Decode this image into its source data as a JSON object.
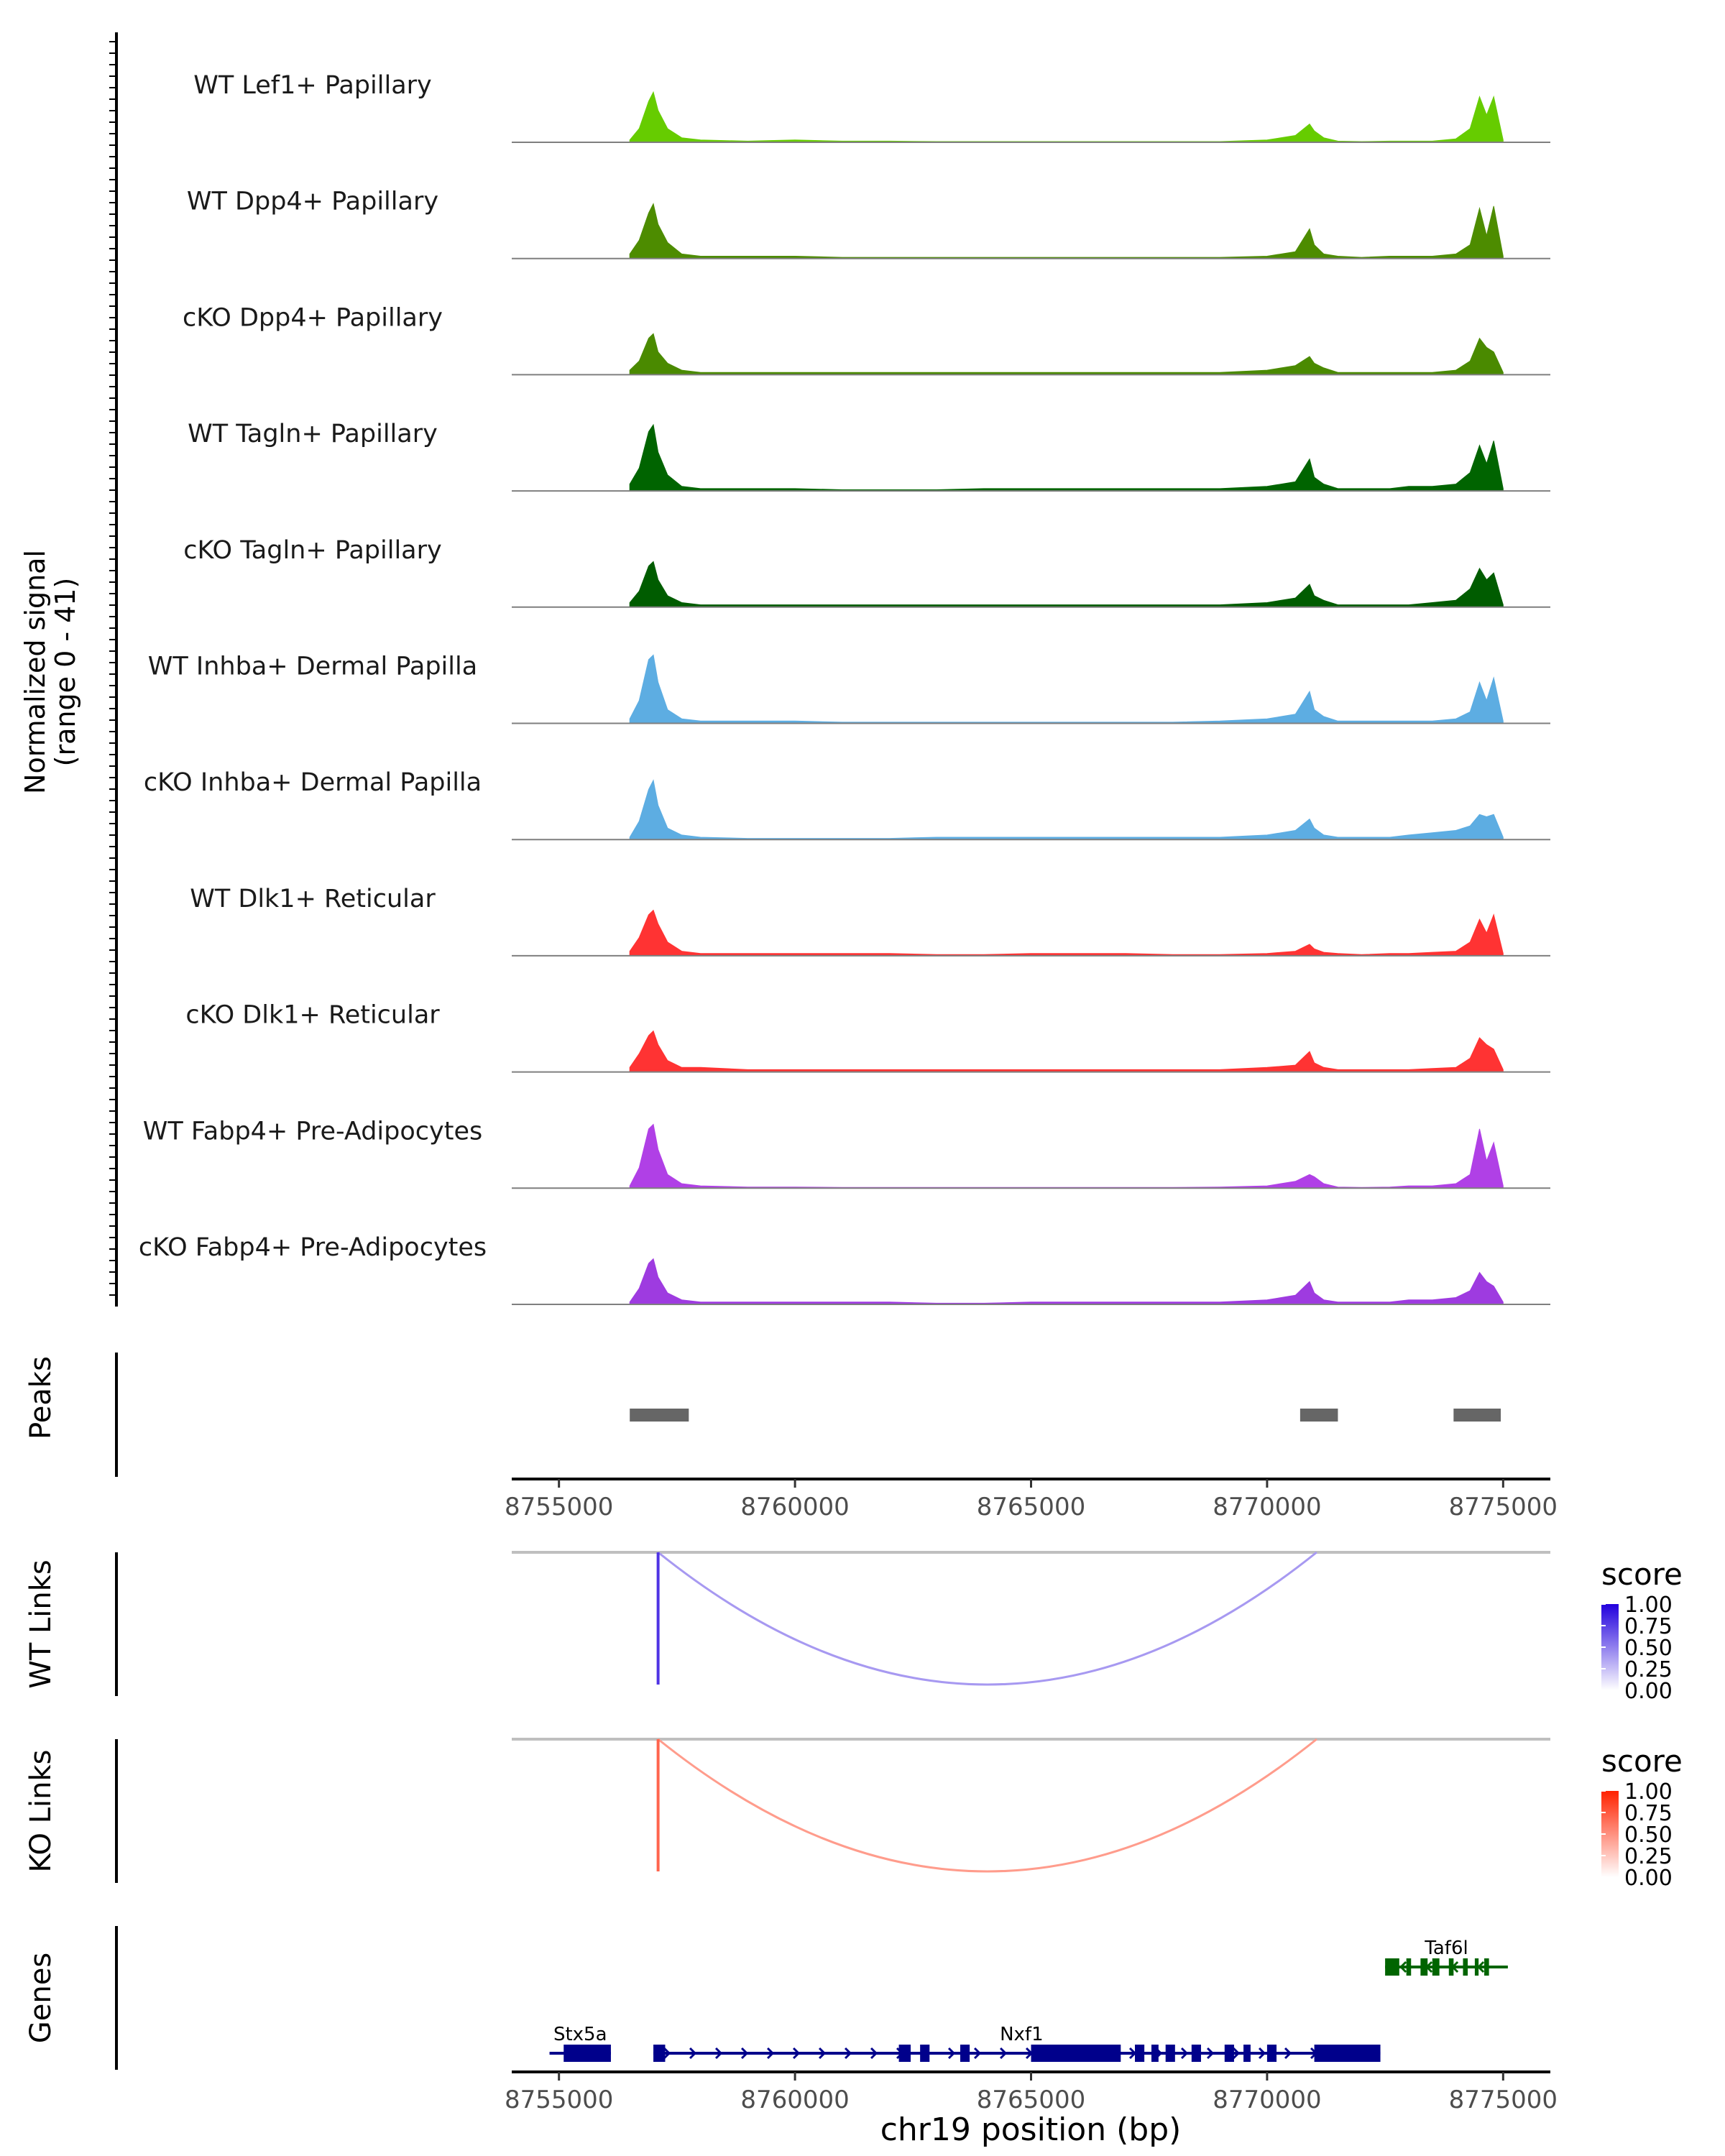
{
  "chart_data": {
    "type": "area",
    "title": "",
    "region": {
      "chrom": "chr19",
      "start": 8754000,
      "end": 8776000
    },
    "xlabel": "chr19 position (bp)",
    "x_ticks": [
      8755000,
      8760000,
      8765000,
      8770000,
      8775000
    ],
    "x_tick_labels": [
      "8755000",
      "8760000",
      "8765000",
      "8770000",
      "8775000"
    ],
    "coverage": {
      "ylabel_line1": "Normalized signal",
      "ylabel_line2": "(range 0 - 41)",
      "ylim": [
        0,
        41
      ],
      "x": [
        8756500,
        8756700,
        8756900,
        8757000,
        8757100,
        8757300,
        8757600,
        8758000,
        8759000,
        8760000,
        8761000,
        8762000,
        8763000,
        8764000,
        8765000,
        8766000,
        8767000,
        8768000,
        8769000,
        8770000,
        8770600,
        8770900,
        8771000,
        8771200,
        8771500,
        8772000,
        8772600,
        8773000,
        8773500,
        8774000,
        8774300,
        8774500,
        8774650,
        8774800,
        8775000
      ],
      "tracks": [
        {
          "label": "WT Lef1+ Papillary",
          "color": "#66CC00",
          "values": [
            1,
            6,
            18,
            22,
            14,
            6,
            2,
            1,
            0.5,
            1,
            0.5,
            0.5,
            0.3,
            0.3,
            0.3,
            0.3,
            0.3,
            0.3,
            0.3,
            1,
            3,
            8,
            5,
            2,
            0.5,
            0.3,
            0.5,
            0.5,
            0.5,
            1.5,
            6,
            20,
            12,
            20,
            1
          ]
        },
        {
          "label": "WT Dpp4+ Papillary",
          "color": "#4D8C00",
          "values": [
            2,
            8,
            20,
            24,
            15,
            7,
            2,
            1,
            1,
            1,
            0.5,
            0.5,
            0.5,
            0.5,
            0.5,
            0.5,
            0.5,
            0.5,
            0.5,
            1,
            3,
            13,
            6,
            2,
            1,
            0.5,
            1,
            1,
            1,
            2,
            6,
            22,
            10,
            23,
            1
          ]
        },
        {
          "label": "cKO Dpp4+ Papillary",
          "color": "#4A8A00",
          "values": [
            2,
            6,
            16,
            18,
            10,
            5,
            2,
            1,
            1,
            1,
            1,
            1,
            1,
            1,
            1,
            1,
            1,
            1,
            1,
            2,
            4,
            8,
            5,
            3,
            1,
            1,
            1,
            1,
            1,
            2,
            6,
            16,
            12,
            10,
            1
          ]
        },
        {
          "label": "WT Tagln+ Papillary",
          "color": "#006400",
          "values": [
            3,
            10,
            26,
            29,
            17,
            7,
            2,
            1,
            1,
            1,
            0.5,
            0.5,
            0.5,
            1,
            1,
            1,
            1,
            1,
            1,
            2,
            4,
            14,
            6,
            3,
            1,
            1,
            1,
            2,
            2,
            3,
            8,
            20,
            12,
            22,
            1
          ]
        },
        {
          "label": "cKO Tagln+ Papillary",
          "color": "#005C00",
          "values": [
            2,
            7,
            18,
            20,
            12,
            5,
            2,
            1,
            1,
            1,
            1,
            1,
            1,
            1,
            1,
            1,
            1,
            1,
            1,
            2,
            4,
            10,
            5,
            3,
            1,
            1,
            1,
            1,
            2,
            3,
            8,
            17,
            12,
            15,
            1
          ]
        },
        {
          "label": "WT Inhba+ Dermal Papilla",
          "color": "#5DADE2",
          "values": [
            2,
            10,
            28,
            30,
            18,
            6,
            2,
            1,
            1,
            1,
            0.5,
            0.5,
            0.5,
            0.5,
            0.5,
            0.5,
            0.5,
            0.5,
            1,
            2,
            4,
            14,
            6,
            3,
            1,
            1,
            1,
            1,
            1,
            2,
            5,
            18,
            10,
            20,
            1
          ]
        },
        {
          "label": "cKO Inhba+ Dermal Papilla",
          "color": "#5DADE2",
          "values": [
            1,
            8,
            22,
            26,
            15,
            5,
            2,
            1,
            0.5,
            0.5,
            0.5,
            0.5,
            1,
            1,
            1,
            1,
            1,
            1,
            1,
            2,
            4,
            9,
            5,
            2,
            1,
            1,
            1,
            2,
            3,
            4,
            6,
            11,
            10,
            11,
            1
          ]
        },
        {
          "label": "WT Dlk1+ Reticular",
          "color": "#FF3333",
          "values": [
            2,
            8,
            18,
            20,
            14,
            6,
            2,
            1,
            1,
            1,
            1,
            1,
            0.5,
            0.5,
            1,
            1,
            1,
            0.5,
            0.5,
            1,
            2,
            5,
            3,
            1.5,
            1,
            0.5,
            1,
            1,
            1.5,
            2,
            6,
            16,
            10,
            18,
            1
          ]
        },
        {
          "label": "cKO Dlk1+ Reticular",
          "color": "#FF3333",
          "values": [
            2,
            8,
            16,
            18,
            12,
            5,
            2,
            2,
            1,
            1,
            1,
            1,
            1,
            1,
            1,
            1,
            1,
            1,
            1,
            2,
            3,
            9,
            4,
            2,
            1,
            1,
            1,
            1,
            1.5,
            2,
            6,
            15,
            12,
            10,
            1
          ]
        },
        {
          "label": "WT Fabp4+ Pre-Adipocytes",
          "color": "#B040E6",
          "values": [
            1,
            9,
            26,
            28,
            17,
            6,
            2,
            1,
            0.5,
            0.5,
            0.3,
            0.3,
            0.3,
            0.3,
            0.3,
            0.3,
            0.3,
            0.3,
            0.5,
            1,
            3,
            6,
            5,
            2,
            0.5,
            0.3,
            0.5,
            1,
            1,
            2,
            6,
            26,
            12,
            20,
            1
          ]
        },
        {
          "label": "cKO Fabp4+ Pre-Adipocytes",
          "color": "#9E3BE0",
          "values": [
            1,
            7,
            18,
            20,
            12,
            5,
            2,
            1,
            1,
            1,
            1,
            1,
            0.5,
            0.5,
            1,
            1,
            1,
            1,
            1,
            2,
            4,
            10,
            5,
            2,
            1,
            1,
            1,
            2,
            2,
            3,
            6,
            14,
            10,
            8,
            1
          ]
        }
      ]
    },
    "peaks": {
      "label": "Peaks",
      "color": "#666666",
      "intervals": [
        [
          8756500,
          8757750
        ],
        [
          8770700,
          8771500
        ],
        [
          8773950,
          8774950
        ]
      ]
    },
    "links": [
      {
        "label": "WT Links",
        "legend_title": "score",
        "color_high": "#2200DD",
        "color_low": "#FFFFFF",
        "arcs": [
          {
            "start": 8757100,
            "end": 8771050,
            "score": 0.4
          },
          {
            "start": 8757100,
            "end": 8757100,
            "score": 0.8
          }
        ]
      },
      {
        "label": "KO Links",
        "legend_title": "score",
        "color_high": "#FF2200",
        "color_low": "#FFFFFF",
        "arcs": [
          {
            "start": 8757100,
            "end": 8771050,
            "score": 0.45
          },
          {
            "start": 8757100,
            "end": 8757100,
            "score": 0.7
          }
        ]
      }
    ],
    "legend_ticks": [
      "1.00",
      "0.75",
      "0.50",
      "0.25",
      "0.00"
    ],
    "genes": {
      "label": "Genes",
      "items": [
        {
          "name": "Stx5a",
          "strand": "-",
          "color": "#00008B",
          "row": 1,
          "start": 8754800,
          "end": 8756100,
          "exons": [
            [
              8755100,
              8756100
            ]
          ]
        },
        {
          "name": "Nxf1",
          "strand": "+",
          "color": "#00008B",
          "row": 1,
          "start": 8757000,
          "end": 8772400,
          "exons": [
            [
              8757000,
              8757250
            ],
            [
              8762200,
              8762450
            ],
            [
              8762650,
              8762850
            ],
            [
              8763500,
              8763700
            ],
            [
              8765000,
              8766900
            ],
            [
              8767200,
              8767400
            ],
            [
              8767550,
              8767700
            ],
            [
              8767850,
              8768050
            ],
            [
              8768400,
              8768600
            ],
            [
              8769100,
              8769300
            ],
            [
              8769500,
              8769650
            ],
            [
              8770000,
              8770200
            ],
            [
              8771000,
              8772400
            ]
          ],
          "label_pos": 8764800
        },
        {
          "name": "Taf6l",
          "strand": "-",
          "color": "#006400",
          "row": 0,
          "start": 8772500,
          "end": 8775100,
          "exons": [
            [
              8772500,
              8772800
            ],
            [
              8772950,
              8773050
            ],
            [
              8773250,
              8773400
            ],
            [
              8773500,
              8773650
            ],
            [
              8773850,
              8773950
            ],
            [
              8774150,
              8774250
            ],
            [
              8774400,
              8774480
            ],
            [
              8774600,
              8774700
            ]
          ],
          "label_pos": 8773800
        }
      ]
    }
  }
}
